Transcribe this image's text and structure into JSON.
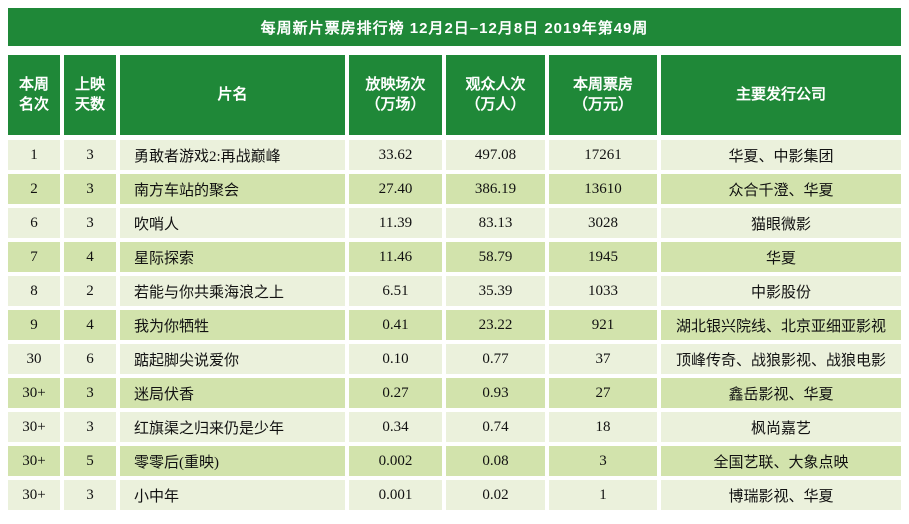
{
  "title": "每周新片票房排行榜  12月2日–12月8日  2019年第49周",
  "colors": {
    "header_green": "#1F8838",
    "row_light": "#EBF1DC",
    "row_dark": "#D2E3AC",
    "title_text": "#FFFFFF",
    "data_text": "#111111"
  },
  "table": {
    "headers": [
      "本周\n名次",
      "上映\n天数",
      "片名",
      "放映场次\n（万场）",
      "观众人次\n（万人）",
      "本周票房\n（万元）",
      "主要发行公司"
    ],
    "rows": [
      [
        "1",
        "3",
        "勇敢者游戏2:再战巅峰",
        "33.62",
        "497.08",
        "17261",
        "华夏、中影集团"
      ],
      [
        "2",
        "3",
        "南方车站的聚会",
        "27.40",
        "386.19",
        "13610",
        "众合千澄、华夏"
      ],
      [
        "6",
        "3",
        "吹哨人",
        "11.39",
        "83.13",
        "3028",
        "猫眼微影"
      ],
      [
        "7",
        "4",
        "星际探索",
        "11.46",
        "58.79",
        "1945",
        "华夏"
      ],
      [
        "8",
        "2",
        "若能与你共乘海浪之上",
        "6.51",
        "35.39",
        "1033",
        "中影股份"
      ],
      [
        "9",
        "4",
        "我为你牺牲",
        "0.41",
        "23.22",
        "921",
        "湖北银兴院线、北京亚细亚影视"
      ],
      [
        "30",
        "6",
        "踮起脚尖说爱你",
        "0.10",
        "0.77",
        "37",
        "顶峰传奇、战狼影视、战狼电影"
      ],
      [
        "30+",
        "3",
        "迷局伏香",
        "0.27",
        "0.93",
        "27",
        "鑫岳影视、华夏"
      ],
      [
        "30+",
        "3",
        "红旗渠之归来仍是少年",
        "0.34",
        "0.74",
        "18",
        "枫尚嘉艺"
      ],
      [
        "30+",
        "5",
        "零零后(重映)",
        "0.002",
        "0.08",
        "3",
        "全国艺联、大象点映"
      ],
      [
        "30+",
        "3",
        "小中年",
        "0.001",
        "0.02",
        "1",
        "博瑞影视、华夏"
      ]
    ]
  },
  "chart_data": {
    "type": "table",
    "title": "每周新片票房排行榜  12月2日–12月8日  2019年第49周",
    "columns": [
      "本周名次",
      "上映天数",
      "片名",
      "放映场次（万场）",
      "观众人次（万人）",
      "本周票房（万元）",
      "主要发行公司"
    ],
    "rows": [
      [
        "1",
        "3",
        "勇敢者游戏2:再战巅峰",
        33.62,
        497.08,
        17261,
        "华夏、中影集团"
      ],
      [
        "2",
        "3",
        "南方车站的聚会",
        27.4,
        386.19,
        13610,
        "众合千澄、华夏"
      ],
      [
        "6",
        "3",
        "吹哨人",
        11.39,
        83.13,
        3028,
        "猫眼微影"
      ],
      [
        "7",
        "4",
        "星际探索",
        11.46,
        58.79,
        1945,
        "华夏"
      ],
      [
        "8",
        "2",
        "若能与你共乘海浪之上",
        6.51,
        35.39,
        1033,
        "中影股份"
      ],
      [
        "9",
        "4",
        "我为你牺牲",
        0.41,
        23.22,
        921,
        "湖北银兴院线、北京亚细亚影视"
      ],
      [
        "30",
        "6",
        "踮起脚尖说爱你",
        0.1,
        0.77,
        37,
        "顶峰传奇、战狼影视、战狼电影"
      ],
      [
        "30+",
        "3",
        "迷局伏香",
        0.27,
        0.93,
        27,
        "鑫岳影视、华夏"
      ],
      [
        "30+",
        "3",
        "红旗渠之归来仍是少年",
        0.34,
        0.74,
        18,
        "枫尚嘉艺"
      ],
      [
        "30+",
        "5",
        "零零后(重映)",
        0.002,
        0.08,
        3,
        "全国艺联、大象点映"
      ],
      [
        "30+",
        "3",
        "小中年",
        0.001,
        0.02,
        1,
        "博瑞影视、华夏"
      ]
    ]
  }
}
